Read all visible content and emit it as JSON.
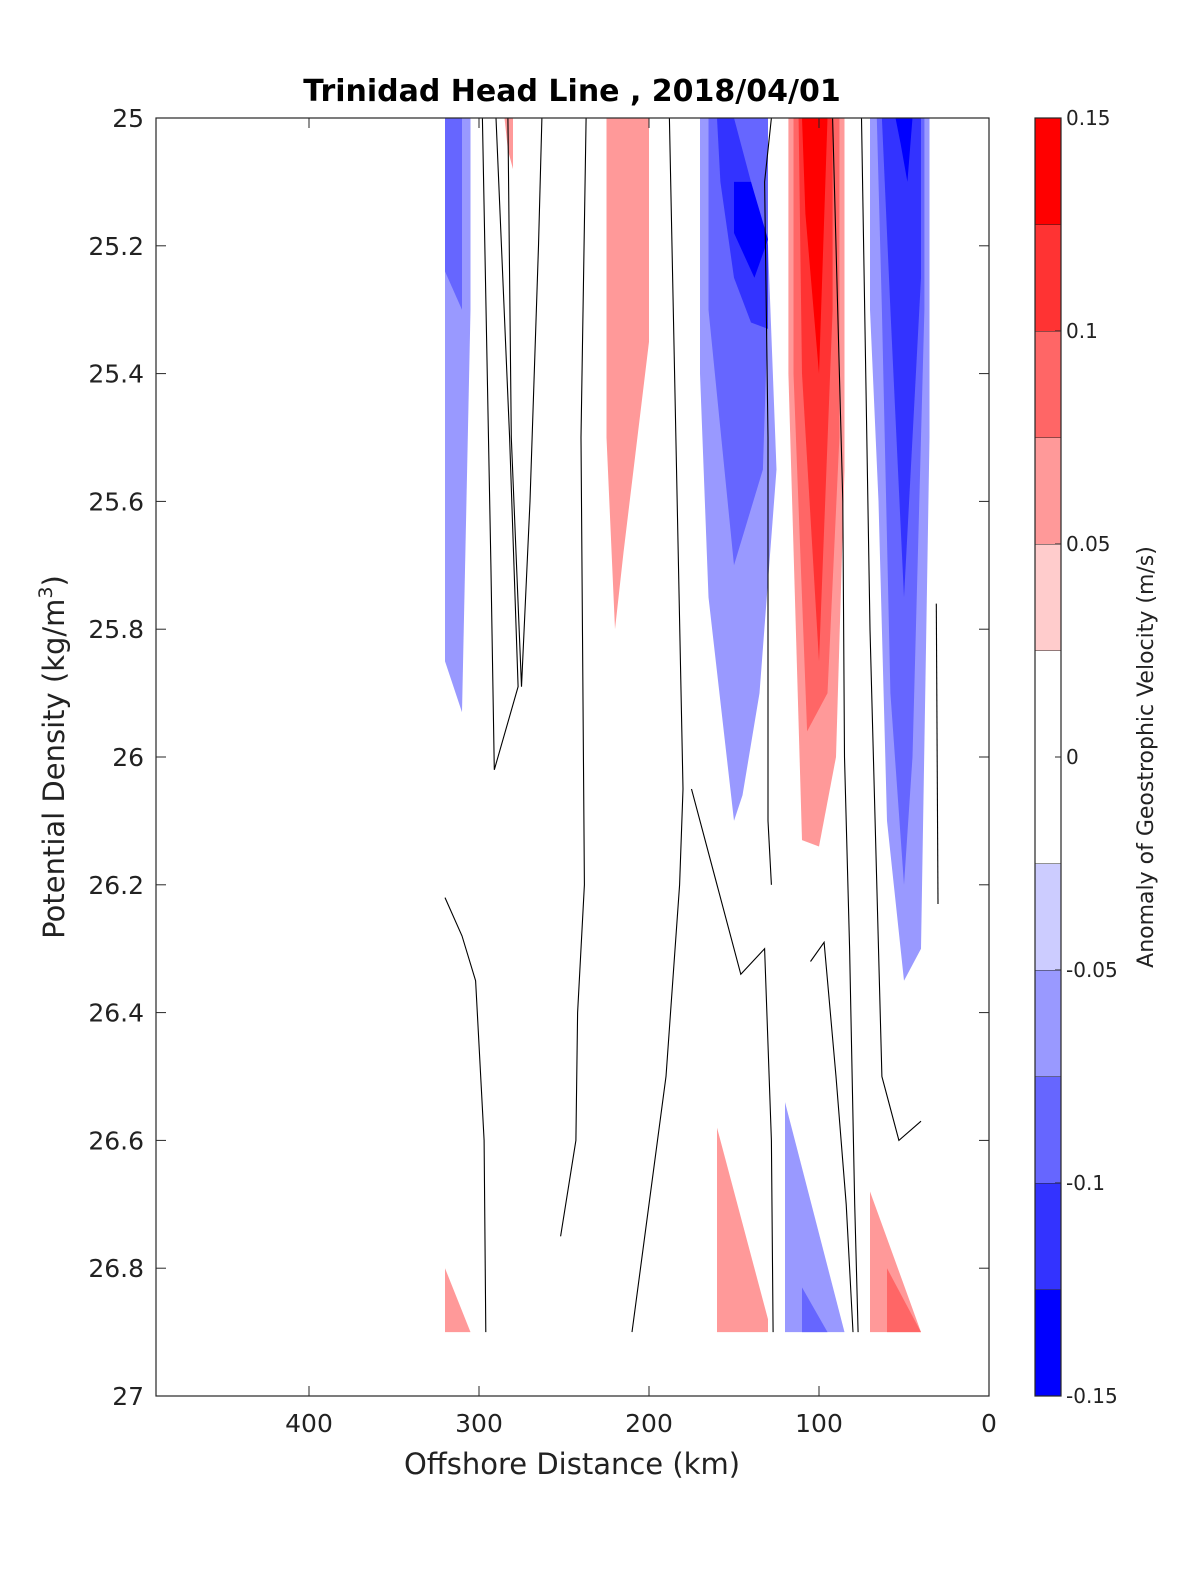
{
  "chart_data": {
    "type": "filled-contour",
    "title": "Trinidad Head Line , 2018/04/01",
    "xlabel": "Offshore Distance (km)",
    "ylabel_main": "Potential Density (kg/m",
    "ylabel_sup": "3",
    "ylabel_tail": ")",
    "x_reversed": true,
    "y_reversed": true,
    "xlim": [
      0,
      490
    ],
    "ylim": [
      25,
      27
    ],
    "x_ticks": [
      {
        "value": 400,
        "label": "400"
      },
      {
        "value": 300,
        "label": "300"
      },
      {
        "value": 200,
        "label": "200"
      },
      {
        "value": 100,
        "label": "100"
      },
      {
        "value": 0,
        "label": "0"
      }
    ],
    "y_ticks": [
      {
        "value": 25,
        "label": "25"
      },
      {
        "value": 25.2,
        "label": "25.2"
      },
      {
        "value": 25.4,
        "label": "25.4"
      },
      {
        "value": 25.6,
        "label": "25.6"
      },
      {
        "value": 25.8,
        "label": "25.8"
      },
      {
        "value": 26,
        "label": "26"
      },
      {
        "value": 26.2,
        "label": "26.2"
      },
      {
        "value": 26.4,
        "label": "26.4"
      },
      {
        "value": 26.6,
        "label": "26.6"
      },
      {
        "value": 26.8,
        "label": "26.8"
      },
      {
        "value": 27,
        "label": "27"
      }
    ],
    "colorbar": {
      "title": "Anomaly of Geostrophic Velocity (m/s)",
      "range": [
        -0.15,
        0.15
      ],
      "levels": [
        -0.15,
        -0.125,
        -0.1,
        -0.075,
        -0.05,
        -0.025,
        0.025,
        0.05,
        0.075,
        0.1,
        0.125,
        0.15
      ],
      "colors": [
        "#0000ff",
        "#3333ff",
        "#6666ff",
        "#9999ff",
        "#ccccff",
        "#ffffff",
        "#ffcccc",
        "#ff9999",
        "#ff6666",
        "#ff3333",
        "#ff0000"
      ],
      "ticks": [
        {
          "value": 0.15,
          "label": "0.15"
        },
        {
          "value": 0.1,
          "label": "0.1"
        },
        {
          "value": 0.05,
          "label": "0.05"
        },
        {
          "value": 0,
          "label": "0"
        },
        {
          "value": -0.05,
          "label": "-0.05"
        },
        {
          "value": -0.1,
          "label": "-0.1"
        },
        {
          "value": -0.15,
          "label": "-0.15"
        }
      ]
    },
    "regions": [
      {
        "level": -0.05,
        "pts": [
          [
            320,
            25
          ],
          [
            305,
            25
          ],
          [
            305,
            25.3
          ],
          [
            310,
            25.93
          ],
          [
            320,
            25.85
          ]
        ]
      },
      {
        "level": -0.075,
        "pts": [
          [
            320,
            25
          ],
          [
            310,
            25
          ],
          [
            310,
            25.3
          ],
          [
            320,
            25.24
          ]
        ]
      },
      {
        "level": 0.05,
        "pts": [
          [
            285,
            25
          ],
          [
            280,
            25
          ],
          [
            280,
            25.08
          ],
          [
            283,
            25.05
          ]
        ]
      },
      {
        "level": 0.05,
        "pts": [
          [
            225,
            25
          ],
          [
            200,
            25
          ],
          [
            200,
            25.35
          ],
          [
            215,
            25.68
          ],
          [
            220,
            25.8
          ],
          [
            225,
            25.5
          ]
        ]
      },
      {
        "level": -0.05,
        "pts": [
          [
            170,
            25
          ],
          [
            130,
            25
          ],
          [
            130,
            25.2
          ],
          [
            125,
            25.55
          ],
          [
            135,
            25.9
          ],
          [
            145,
            26.06
          ],
          [
            150,
            26.1
          ],
          [
            165,
            25.75
          ],
          [
            170,
            25.4
          ]
        ]
      },
      {
        "level": -0.075,
        "pts": [
          [
            165,
            25
          ],
          [
            130,
            25
          ],
          [
            130,
            25.3
          ],
          [
            133,
            25.55
          ],
          [
            150,
            25.7
          ],
          [
            165,
            25.3
          ]
        ]
      },
      {
        "level": -0.1,
        "pts": [
          [
            160,
            25
          ],
          [
            150,
            25
          ],
          [
            130,
            25.2
          ],
          [
            130,
            25.33
          ],
          [
            140,
            25.32
          ],
          [
            150,
            25.25
          ],
          [
            158,
            25.1
          ]
        ]
      },
      {
        "level": -0.125,
        "pts": [
          [
            150,
            25.1
          ],
          [
            140,
            25.1
          ],
          [
            130,
            25.19
          ],
          [
            138,
            25.25
          ],
          [
            150,
            25.18
          ]
        ]
      },
      {
        "level": 0.05,
        "pts": [
          [
            118,
            25
          ],
          [
            85,
            25
          ],
          [
            85,
            25.55
          ],
          [
            90,
            26
          ],
          [
            100,
            26.14
          ],
          [
            110,
            26.13
          ],
          [
            118,
            25.4
          ]
        ]
      },
      {
        "level": 0.075,
        "pts": [
          [
            115,
            25
          ],
          [
            88,
            25
          ],
          [
            88,
            25.5
          ],
          [
            95,
            25.9
          ],
          [
            107,
            25.96
          ],
          [
            115,
            25.4
          ]
        ]
      },
      {
        "level": 0.1,
        "pts": [
          [
            112,
            25
          ],
          [
            92,
            25
          ],
          [
            92,
            25.3
          ],
          [
            100,
            25.85
          ],
          [
            110,
            25.4
          ]
        ]
      },
      {
        "level": 0.125,
        "pts": [
          [
            110,
            25
          ],
          [
            95,
            25
          ],
          [
            100,
            25.4
          ],
          [
            108,
            25.15
          ]
        ]
      },
      {
        "level": 0.15,
        "pts": [
          [
            108,
            25
          ],
          [
            97,
            25
          ],
          [
            102,
            25.1
          ],
          [
            106,
            25.05
          ]
        ]
      },
      {
        "level": -0.05,
        "pts": [
          [
            70,
            25
          ],
          [
            35,
            25
          ],
          [
            35,
            25.5
          ],
          [
            40,
            26.3
          ],
          [
            50,
            26.35
          ],
          [
            60,
            26.1
          ],
          [
            65,
            25.6
          ],
          [
            70,
            25.3
          ]
        ]
      },
      {
        "level": -0.075,
        "pts": [
          [
            66,
            25
          ],
          [
            38,
            25
          ],
          [
            38,
            25.3
          ],
          [
            45,
            26
          ],
          [
            50,
            26.2
          ],
          [
            58,
            25.9
          ],
          [
            63,
            25.3
          ]
        ]
      },
      {
        "level": -0.1,
        "pts": [
          [
            63,
            25
          ],
          [
            40,
            25
          ],
          [
            40,
            25.25
          ],
          [
            50,
            25.75
          ],
          [
            58,
            25.3
          ]
        ]
      },
      {
        "level": -0.125,
        "pts": [
          [
            55,
            25
          ],
          [
            45,
            25
          ],
          [
            48,
            25.1
          ],
          [
            52,
            25.04
          ]
        ]
      },
      {
        "level": 0.05,
        "pts": [
          [
            160,
            26.58
          ],
          [
            130,
            26.88
          ],
          [
            130,
            26.9
          ],
          [
            160,
            26.9
          ]
        ]
      },
      {
        "level": -0.05,
        "pts": [
          [
            120,
            26.54
          ],
          [
            85,
            26.9
          ],
          [
            120,
            26.9
          ]
        ]
      },
      {
        "level": -0.075,
        "pts": [
          [
            110,
            26.83
          ],
          [
            95,
            26.9
          ],
          [
            110,
            26.9
          ]
        ]
      },
      {
        "level": 0.05,
        "pts": [
          [
            70,
            26.68
          ],
          [
            40,
            26.9
          ],
          [
            70,
            26.9
          ]
        ]
      },
      {
        "level": 0.075,
        "pts": [
          [
            60,
            26.8
          ],
          [
            40,
            26.9
          ],
          [
            60,
            26.9
          ]
        ]
      },
      {
        "level": 0.05,
        "pts": [
          [
            320,
            26.8
          ],
          [
            305,
            26.9
          ],
          [
            320,
            26.9
          ]
        ]
      }
    ],
    "contours": [
      {
        "level": 0,
        "pts": [
          [
            298,
            25
          ],
          [
            293,
            25.7
          ],
          [
            291,
            26.02
          ],
          [
            277,
            25.89
          ],
          [
            282,
            25.5
          ],
          [
            290,
            25
          ]
        ]
      },
      {
        "level": 0,
        "pts": [
          [
            263,
            25
          ],
          [
            265,
            25.2
          ],
          [
            270,
            25.6
          ],
          [
            275,
            25.89
          ],
          [
            281,
            25.5
          ],
          [
            283,
            25
          ]
        ]
      },
      {
        "level": 0,
        "pts": [
          [
            237,
            25
          ],
          [
            240,
            25.5
          ],
          [
            238,
            26.2
          ],
          [
            242,
            26.4
          ],
          [
            243,
            26.6
          ],
          [
            252,
            26.75
          ]
        ]
      },
      {
        "level": 0,
        "pts": [
          [
            188,
            25
          ],
          [
            180,
            26.05
          ],
          [
            182,
            26.2
          ],
          [
            190,
            26.5
          ],
          [
            205,
            26.8
          ],
          [
            210,
            26.9
          ]
        ]
      },
      {
        "level": 0,
        "pts": [
          [
            175,
            26.05
          ],
          [
            160,
            26.2
          ],
          [
            146,
            26.34
          ],
          [
            132,
            26.3
          ],
          [
            128,
            26.6
          ],
          [
            127,
            26.9
          ]
        ]
      },
      {
        "level": 0,
        "pts": [
          [
            128,
            25
          ],
          [
            132,
            25.1
          ],
          [
            130,
            25.5
          ],
          [
            130,
            26.1
          ],
          [
            128,
            26.2
          ]
        ]
      },
      {
        "level": 0,
        "pts": [
          [
            92,
            25
          ],
          [
            86,
            25.6
          ],
          [
            85,
            26
          ],
          [
            82,
            26.3
          ],
          [
            79,
            26.7
          ],
          [
            77,
            26.9
          ]
        ]
      },
      {
        "level": 0,
        "pts": [
          [
            105,
            26.32
          ],
          [
            97,
            26.29
          ],
          [
            90,
            26.5
          ],
          [
            84,
            26.7
          ],
          [
            80,
            26.9
          ]
        ]
      },
      {
        "level": 0,
        "pts": [
          [
            75,
            25
          ],
          [
            70,
            25.8
          ],
          [
            63,
            26.5
          ],
          [
            53,
            26.6
          ],
          [
            40,
            26.57
          ]
        ]
      },
      {
        "level": 0,
        "pts": [
          [
            31,
            25.76
          ],
          [
            30,
            26.23
          ]
        ]
      },
      {
        "level": 0,
        "pts": [
          [
            320,
            26.22
          ],
          [
            310,
            26.28
          ],
          [
            302,
            26.35
          ],
          [
            297,
            26.6
          ],
          [
            296,
            26.9
          ]
        ]
      }
    ]
  }
}
